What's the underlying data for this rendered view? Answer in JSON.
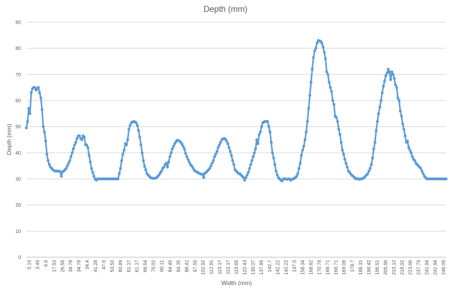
{
  "chart_data": {
    "type": "line",
    "title": "Depth (mm)",
    "xlabel": "Width (mm)",
    "ylabel": "Depth (mm)",
    "ylim": [
      0,
      90
    ],
    "yticks": [
      0,
      10,
      20,
      30,
      40,
      50,
      60,
      70,
      80,
      90
    ],
    "grid": true,
    "legend": "none",
    "color": "#5b9bd5",
    "xticklabels": [
      "0.19",
      "3.49",
      "6.6",
      "17.53",
      "26.58",
      "34.78",
      "34.78",
      "34.4",
      "41.28",
      "47.6",
      "53.53",
      "60.89",
      "61.17",
      "61.17",
      "66.54",
      "75.02",
      "80.11",
      "84.45",
      "84.35",
      "88.41",
      "97.55",
      "102.92",
      "112.91",
      "115.17",
      "115.17",
      "115.65",
      "122.43",
      "130.07",
      "137.89",
      "142.7",
      "142.22",
      "142.22",
      "147.5",
      "158.34",
      "168.82",
      "170.78",
      "168.71",
      "168.71",
      "169.09",
      "178.7",
      "188.31",
      "196.42",
      "196.51",
      "205.56",
      "210.12",
      "216.02",
      "223.66",
      "237.79",
      "241.94",
      "241.94",
      "246.09"
    ],
    "y": [
      49.5,
      52,
      57,
      55,
      63,
      64.5,
      65,
      65,
      64,
      64.5,
      65,
      63,
      61,
      56.5,
      50,
      48,
      44.5,
      39.5,
      37,
      35.5,
      34.5,
      34,
      33.5,
      33.2,
      33,
      33,
      33,
      33,
      32.8,
      31,
      32.7,
      33,
      33.5,
      34,
      35,
      36,
      37,
      38.5,
      40,
      41.5,
      43,
      44,
      45.5,
      46.5,
      46.5,
      45.5,
      45,
      46.5,
      46,
      43,
      43,
      42,
      39,
      36.5,
      34,
      32.5,
      31,
      30,
      29.5,
      30,
      30,
      30,
      30,
      30,
      30,
      30,
      30,
      30,
      30,
      30,
      30,
      30,
      30,
      30,
      30,
      30,
      30,
      32,
      34,
      37,
      39.5,
      41,
      43.5,
      43,
      45,
      49,
      50.5,
      51.5,
      51.8,
      52,
      51.8,
      51.5,
      50.5,
      48.5,
      46,
      43,
      40,
      37,
      34.8,
      33.5,
      32,
      31.5,
      31,
      30.5,
      30.3,
      30.2,
      30.2,
      30.3,
      30.5,
      31,
      31.5,
      32.3,
      33,
      34,
      34.5,
      35.5,
      36,
      34.5,
      36.5,
      38.5,
      40,
      41.5,
      42.5,
      43.5,
      44.2,
      44.8,
      44.7,
      44.5,
      44,
      43.3,
      42.5,
      41.5,
      39.8,
      38.5,
      37.5,
      36.5,
      35.5,
      35,
      34.3,
      33.5,
      33,
      32.8,
      32.5,
      32.2,
      32,
      31.8,
      31.8,
      30.5,
      32.2,
      32.5,
      33,
      33.5,
      34,
      35,
      36,
      37,
      38.5,
      39.5,
      40.5,
      42,
      43,
      44,
      45,
      45.3,
      45.5,
      45.2,
      44.5,
      43.5,
      42,
      40.5,
      39,
      37,
      35.5,
      33.5,
      33,
      32.5,
      32,
      32,
      31.5,
      31,
      30.5,
      29.5,
      30.5,
      31.5,
      32.5,
      34,
      35.5,
      37,
      38.5,
      40,
      41.5,
      45,
      43.5,
      47,
      48,
      50,
      51.5,
      51.8,
      52,
      52,
      52,
      50,
      48,
      44,
      40,
      38,
      35.5,
      33,
      31.5,
      30.5,
      30,
      29.5,
      29.2,
      30,
      30,
      30,
      29.8,
      30,
      30,
      29.5,
      29.8,
      30,
      30.2,
      30.5,
      31,
      32,
      34,
      36,
      39,
      41,
      42.5,
      45,
      48,
      52,
      57,
      62,
      67,
      72,
      76.5,
      79,
      80,
      82,
      83,
      82.8,
      82.7,
      82,
      80.5,
      78.5,
      76,
      71,
      70,
      67,
      65,
      63.5,
      60,
      58.5,
      54,
      53.5,
      52,
      49,
      47,
      44,
      41,
      39.5,
      37.5,
      36,
      34.5,
      33,
      32.5,
      31.8,
      31.3,
      31,
      30.5,
      30,
      30.2,
      30,
      29.8,
      30,
      30,
      30.2,
      30.5,
      31,
      31.5,
      32,
      33,
      34,
      35.5,
      38,
      41.5,
      44,
      48.5,
      52,
      55,
      57.5,
      60,
      63,
      65.5,
      67.5,
      69.5,
      70.5,
      72,
      71,
      68,
      71,
      70,
      68.5,
      66,
      65,
      61,
      60,
      56,
      54,
      51,
      49,
      46.5,
      44,
      44.5,
      42,
      41,
      40,
      38.5,
      37.5,
      37,
      36,
      35.5,
      35,
      34.5,
      34,
      33,
      32,
      31,
      30.5,
      30,
      30,
      30,
      30,
      30,
      30,
      30,
      30,
      30,
      30,
      30,
      30,
      30,
      30,
      30,
      30,
      30
    ]
  }
}
